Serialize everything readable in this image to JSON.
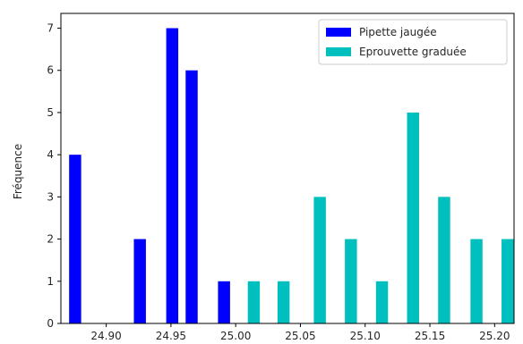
{
  "chart_data": {
    "type": "bar",
    "title": "",
    "xlabel": "",
    "ylabel": "Fréquence",
    "xlim": [
      24.865,
      25.215
    ],
    "ylim": [
      0,
      7.35
    ],
    "grid": false,
    "legend_position": "top-right",
    "xticks": [
      24.9,
      24.95,
      25.0,
      25.05,
      25.1,
      25.15,
      25.2
    ],
    "xtick_labels": [
      "24.90",
      "24.95",
      "25.00",
      "25.05",
      "25.10",
      "25.15",
      "25.20"
    ],
    "yticks": [
      0,
      1,
      2,
      3,
      4,
      5,
      6,
      7
    ],
    "ytick_labels": [
      "0",
      "1",
      "2",
      "3",
      "4",
      "5",
      "6",
      "7"
    ],
    "bar_width": 0.0093,
    "series": [
      {
        "name": "Pipette jaugée",
        "color": "#0000ff",
        "x": [
          24.876,
          24.926,
          24.951,
          24.966,
          24.991
        ],
        "values": [
          4,
          2,
          7,
          6,
          1
        ]
      },
      {
        "name": "Eprouvette graduée",
        "color": "#00bfbf",
        "x": [
          25.014,
          25.037,
          25.065,
          25.089,
          25.113,
          25.137,
          25.161,
          25.186,
          25.21
        ],
        "values": [
          1,
          1,
          3,
          2,
          1,
          5,
          3,
          2,
          2
        ]
      }
    ]
  }
}
